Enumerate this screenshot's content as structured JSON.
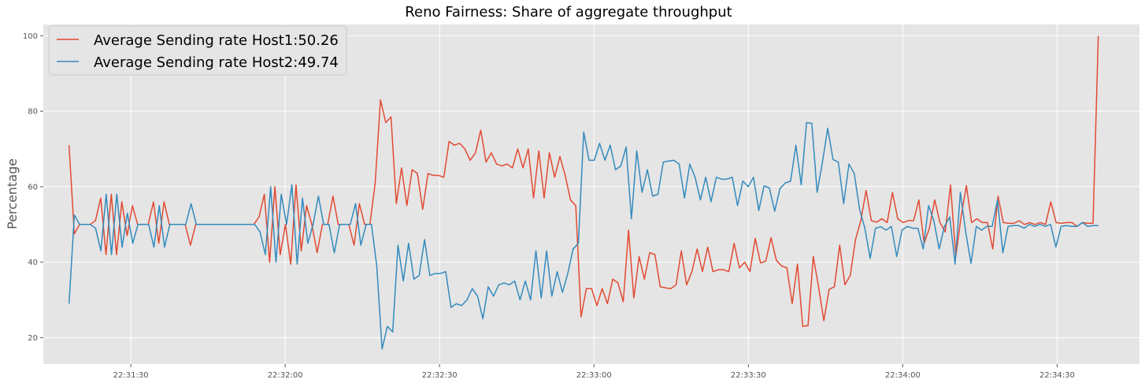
{
  "chart_data": {
    "type": "line",
    "title": "Reno Fairness: Share of aggregate throughput",
    "xlabel": "",
    "ylabel": "Percentage",
    "x_axis_type": "time",
    "x_start": "22:31:18",
    "x_end": "22:34:38",
    "xlim": [
      "22:31:13",
      "22:34:46"
    ],
    "ylim": [
      13,
      103
    ],
    "x_ticks": [
      "22:31:30",
      "22:32:00",
      "22:32:30",
      "22:33:00",
      "22:33:30",
      "22:34:00",
      "22:34:30"
    ],
    "y_ticks": [
      20,
      40,
      60,
      80,
      100
    ],
    "grid": true,
    "background": "#e5e5e5",
    "legend_position": "top-left",
    "series": [
      {
        "name": "Average Sending rate Host1:50.26",
        "color": "#e24a33",
        "values": [
          71,
          47.5,
          50,
          50,
          50,
          51,
          57,
          42,
          58,
          42,
          56,
          47,
          55,
          50,
          50,
          50,
          56,
          45,
          56,
          50,
          50,
          50,
          50,
          44.5,
          50,
          50,
          50,
          50,
          50,
          50,
          50,
          50,
          50,
          50,
          50,
          50,
          52,
          58,
          40,
          60,
          42,
          50,
          39.5,
          60.5,
          43,
          55,
          50,
          42.5,
          50,
          50,
          57.5,
          50,
          50,
          50,
          44.5,
          55.5,
          50,
          50,
          61,
          83,
          77,
          78.5,
          55.5,
          65,
          55,
          64.5,
          63.5,
          54,
          63.5,
          63,
          63,
          62.5,
          72,
          71,
          71.5,
          70,
          67,
          69,
          75,
          66.5,
          69,
          66,
          65.5,
          66,
          65,
          70,
          65,
          70,
          57,
          69.5,
          57,
          69,
          62.5,
          68,
          63,
          56.5,
          55,
          25.5,
          33,
          33,
          28.5,
          33,
          29,
          35.5,
          34.5,
          29.5,
          48.5,
          30.5,
          41.5,
          35.5,
          42.5,
          42,
          33.5,
          33.2,
          33,
          34,
          43,
          34,
          37.5,
          43.5,
          37.5,
          44,
          37.5,
          38,
          38,
          37.5,
          45,
          38.5,
          40,
          37.5,
          46.3,
          39.8,
          40.3,
          46.5,
          40.5,
          39,
          38.5,
          29,
          39.5,
          23,
          23.2,
          41.5,
          33.5,
          24.5,
          32.8,
          33.5,
          44.5,
          34,
          36.5,
          46,
          51,
          59,
          51,
          50.6,
          51.5,
          50.5,
          58.5,
          51.5,
          50.5,
          51,
          51,
          56.5,
          45,
          49,
          56.5,
          50.5,
          48,
          60.5,
          41.5,
          52,
          60.3,
          50.5,
          51.5,
          50.5,
          50.5,
          43.5,
          57.5,
          50.5,
          50.3,
          50.3,
          51,
          50,
          50.5,
          50,
          50.5,
          50,
          56,
          50.5,
          50.3,
          50.5,
          50.5,
          49.5,
          50.5,
          50.3,
          50.3,
          100
        ]
      },
      {
        "name": "Average Sending rate Host2:49.74",
        "color": "#348abd",
        "values": [
          29,
          52.5,
          50,
          50,
          50,
          49,
          43,
          58,
          42,
          58,
          44,
          53,
          45,
          50,
          50,
          50,
          44,
          55,
          44,
          50,
          50,
          50,
          50,
          55.5,
          50,
          50,
          50,
          50,
          50,
          50,
          50,
          50,
          50,
          50,
          50,
          50,
          48,
          42,
          60,
          40,
          58,
          50,
          60.5,
          39.5,
          57,
          45,
          50,
          57.5,
          50,
          50,
          42.5,
          50,
          50,
          50,
          55.5,
          44.5,
          50,
          50,
          39,
          17,
          23,
          21.5,
          44.5,
          35,
          45,
          35.5,
          36.5,
          46,
          36.5,
          37,
          37,
          37.5,
          28,
          29,
          28.5,
          30,
          33,
          31,
          25,
          33.5,
          31,
          34,
          34.5,
          34,
          35,
          30,
          35,
          30,
          43,
          30.5,
          43,
          31,
          37.5,
          32,
          37,
          43.5,
          45,
          74.5,
          67,
          67,
          71.5,
          67,
          71,
          64.5,
          65.5,
          70.5,
          51.5,
          69.5,
          58.5,
          64.5,
          57.5,
          58,
          66.5,
          66.8,
          67,
          66,
          57,
          66,
          62.5,
          56.5,
          62.5,
          56,
          62.5,
          62,
          62,
          62.5,
          55,
          61.5,
          60,
          62.5,
          53.7,
          60.2,
          59.7,
          53.5,
          59.5,
          61,
          61.5,
          71,
          60.5,
          77,
          76.8,
          58.5,
          66.5,
          75.5,
          67.2,
          66.5,
          55.5,
          66,
          63.5,
          54,
          49,
          41,
          49,
          49.4,
          48.5,
          49.5,
          41.5,
          48.5,
          49.5,
          49,
          49,
          43.5,
          55,
          51,
          43.5,
          49.5,
          52,
          39.5,
          58.5,
          48,
          39.7,
          49.5,
          48.5,
          49.5,
          49.5,
          56.5,
          42.5,
          49.5,
          49.7,
          49.7,
          49,
          50,
          49.5,
          50,
          49.5,
          50,
          44,
          49.5,
          49.7,
          49.5,
          49.5,
          50.5,
          49.5,
          49.7,
          49.7
        ]
      }
    ]
  }
}
